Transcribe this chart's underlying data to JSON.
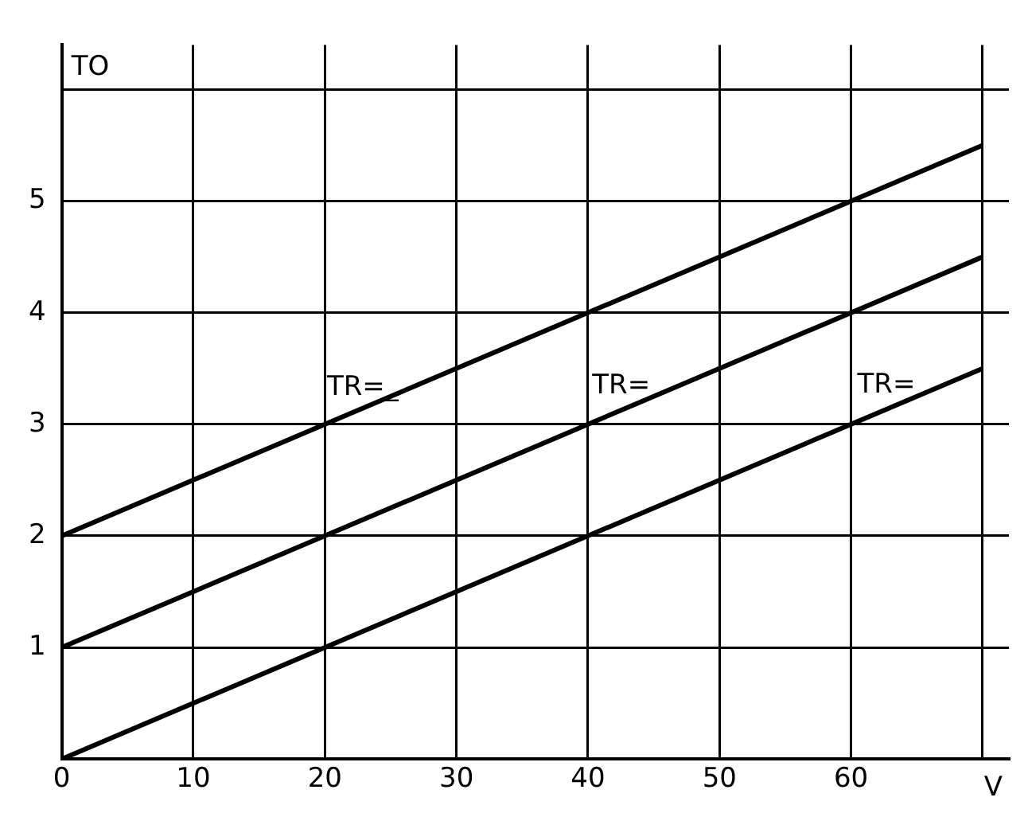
{
  "chart_data": {
    "type": "line",
    "xlabel": "V",
    "ylabel": "TO",
    "x": [
      0,
      70
    ],
    "series": [
      {
        "color": "#000000",
        "values": [
          2,
          5.5
        ]
      },
      {
        "color": "#000000",
        "values": [
          1,
          4.5
        ]
      },
      {
        "color": "#000000",
        "values": [
          0,
          3.5
        ]
      }
    ],
    "xlim": [
      0,
      72
    ],
    "xticks": [
      0,
      10,
      20,
      30,
      40,
      50,
      60,
      {
        "value": 70,
        "label": null
      }
    ],
    "ylim": [
      0,
      6.4
    ],
    "yticks": [
      {
        "value": 0,
        "label": null
      },
      1,
      2,
      3,
      4,
      5,
      {
        "value": 6,
        "label": null
      }
    ],
    "annotations": [
      "TR=_",
      "TR=",
      "TR="
    ],
    "grid": true,
    "legend": false,
    "marker": "none",
    "line_style": "solid"
  }
}
